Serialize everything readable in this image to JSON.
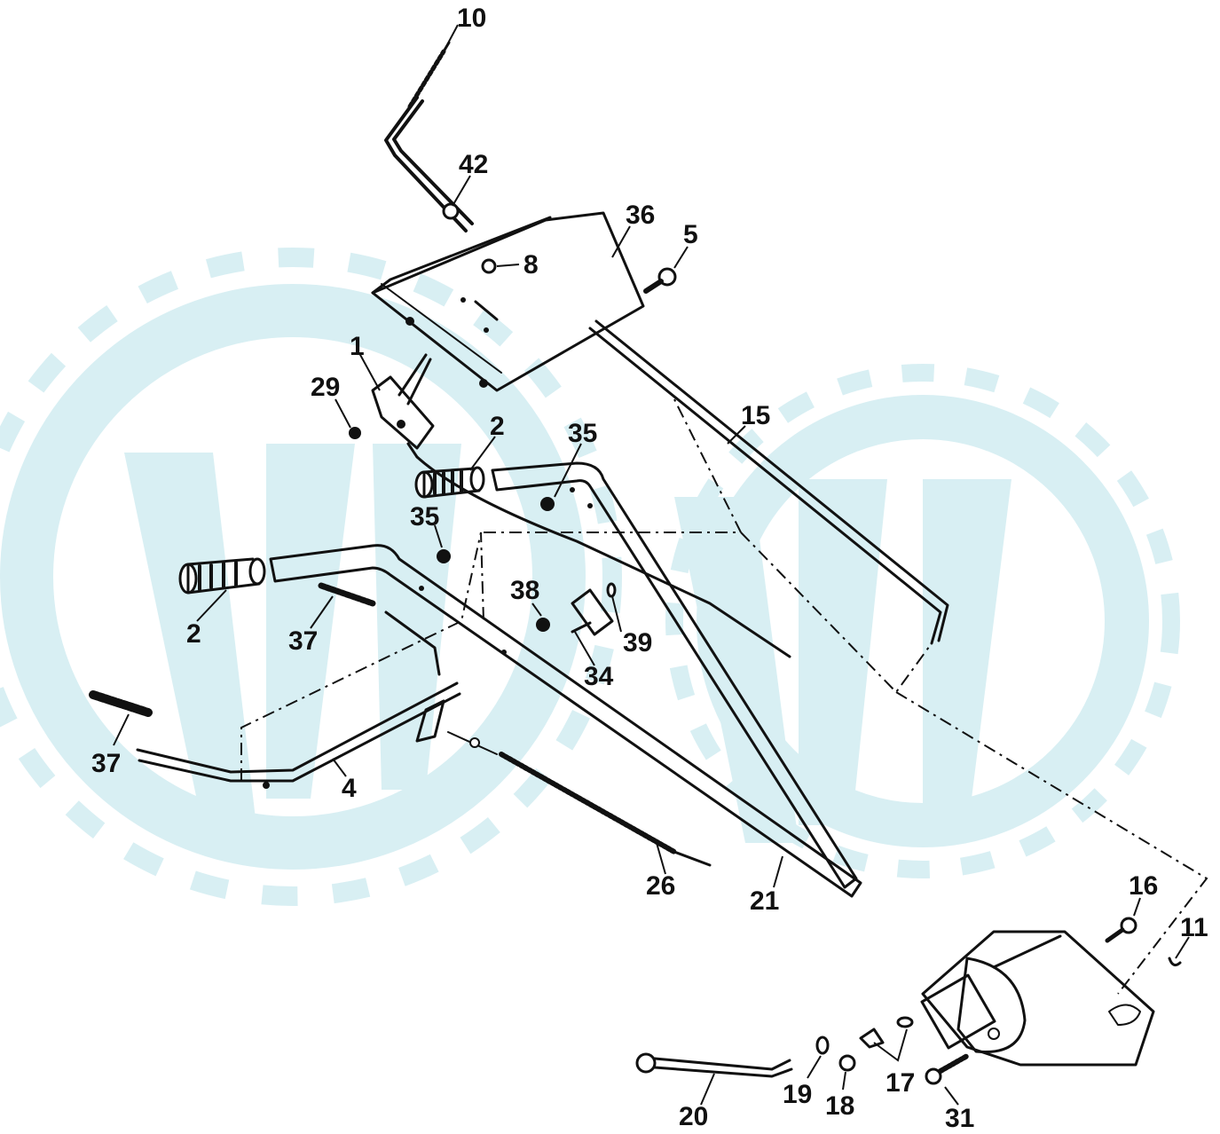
{
  "diagram": {
    "type": "exploded parts diagram",
    "watermark_color": "#d6eef2",
    "line_color": "#111111",
    "callouts": {
      "c10": "10",
      "c42": "42",
      "c36": "36",
      "c5": "5",
      "c8": "8",
      "c1": "1",
      "c29": "29",
      "c2a": "2",
      "c35a": "35",
      "c15": "15",
      "c35b": "35",
      "c2b": "2",
      "c37a": "37",
      "c38": "38",
      "c39": "39",
      "c34": "34",
      "c37b": "37",
      "c4": "4",
      "c26": "26",
      "c21": "21",
      "c16": "16",
      "c11": "11",
      "c19": "19",
      "c18": "18",
      "c17": "17",
      "c31": "31",
      "c20": "20"
    }
  }
}
